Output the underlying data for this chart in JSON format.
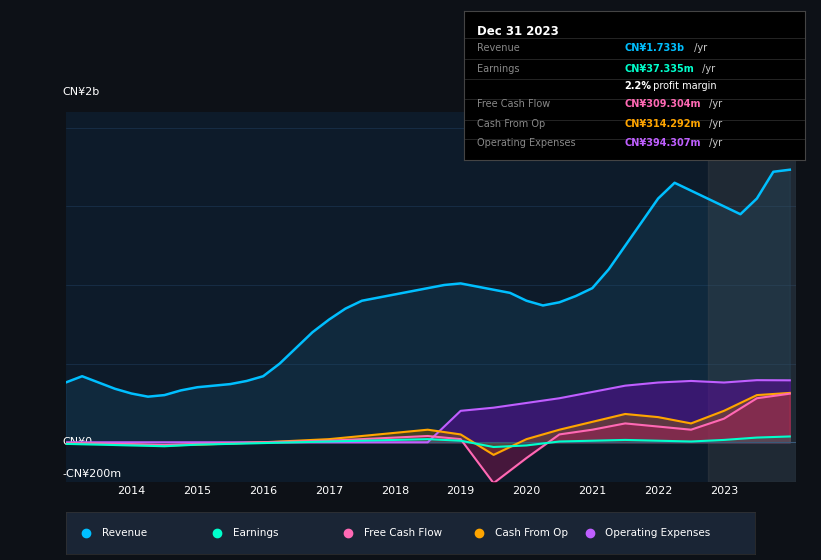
{
  "bg_color": "#0d1117",
  "chart_bg": "#0d1b2a",
  "ylabel_top": "CN¥2b",
  "ylabel_zero": "CN¥0",
  "ylabel_neg": "-CN¥200m",
  "info_box": {
    "title": "Dec 31 2023",
    "rows": [
      {
        "label": "Revenue",
        "value": "CN¥1.733b /yr",
        "color": "#00bfff"
      },
      {
        "label": "Earnings",
        "value": "CN¥37.335m /yr",
        "color": "#00ffcc"
      },
      {
        "label": "",
        "value": "2.2% profit margin",
        "color": "#ffffff"
      },
      {
        "label": "Free Cash Flow",
        "value": "CN¥309.304m /yr",
        "color": "#ff69b4"
      },
      {
        "label": "Cash From Op",
        "value": "CN¥314.292m /yr",
        "color": "#ffa500"
      },
      {
        "label": "Operating Expenses",
        "value": "CN¥394.307m /yr",
        "color": "#bf5fff"
      }
    ]
  },
  "legend": [
    {
      "label": "Revenue",
      "color": "#00bfff"
    },
    {
      "label": "Earnings",
      "color": "#00ffcc"
    },
    {
      "label": "Free Cash Flow",
      "color": "#ff69b4"
    },
    {
      "label": "Cash From Op",
      "color": "#ffa500"
    },
    {
      "label": "Operating Expenses",
      "color": "#bf5fff"
    }
  ],
  "revenue": {
    "x": [
      2013.0,
      2013.25,
      2013.5,
      2013.75,
      2014.0,
      2014.25,
      2014.5,
      2014.75,
      2015.0,
      2015.25,
      2015.5,
      2015.75,
      2016.0,
      2016.25,
      2016.5,
      2016.75,
      2017.0,
      2017.25,
      2017.5,
      2017.75,
      2018.0,
      2018.25,
      2018.5,
      2018.75,
      2019.0,
      2019.25,
      2019.5,
      2019.75,
      2020.0,
      2020.25,
      2020.5,
      2020.75,
      2021.0,
      2021.25,
      2021.5,
      2021.75,
      2022.0,
      2022.25,
      2022.5,
      2022.75,
      2023.0,
      2023.25,
      2023.5,
      2023.75,
      2024.0
    ],
    "y": [
      380,
      420,
      380,
      340,
      310,
      290,
      300,
      330,
      350,
      360,
      370,
      390,
      420,
      500,
      600,
      700,
      780,
      850,
      900,
      920,
      940,
      960,
      980,
      1000,
      1010,
      990,
      970,
      950,
      900,
      870,
      890,
      930,
      980,
      1100,
      1250,
      1400,
      1550,
      1650,
      1600,
      1550,
      1500,
      1450,
      1550,
      1720,
      1733
    ]
  },
  "earnings": {
    "x": [
      2013.0,
      2013.5,
      2014.0,
      2014.5,
      2015.0,
      2015.5,
      2016.0,
      2016.5,
      2017.0,
      2017.5,
      2018.0,
      2018.5,
      2019.0,
      2019.5,
      2020.0,
      2020.5,
      2021.0,
      2021.5,
      2022.0,
      2022.5,
      2023.0,
      2023.5,
      2024.0
    ],
    "y": [
      -10,
      -15,
      -20,
      -25,
      -15,
      -10,
      -5,
      0,
      5,
      10,
      15,
      20,
      10,
      -30,
      -20,
      5,
      10,
      15,
      10,
      5,
      15,
      30,
      37
    ]
  },
  "free_cash_flow": {
    "x": [
      2013.0,
      2013.5,
      2014.0,
      2014.5,
      2015.0,
      2015.5,
      2016.0,
      2016.5,
      2017.0,
      2017.5,
      2018.0,
      2018.5,
      2019.0,
      2019.5,
      2020.0,
      2020.5,
      2021.0,
      2021.5,
      2022.0,
      2022.5,
      2023.0,
      2023.5,
      2024.0
    ],
    "y": [
      -5,
      -8,
      -12,
      -18,
      -10,
      -5,
      0,
      5,
      10,
      20,
      30,
      40,
      20,
      -260,
      -100,
      50,
      80,
      120,
      100,
      80,
      150,
      280,
      309
    ]
  },
  "cash_from_op": {
    "x": [
      2013.0,
      2013.5,
      2014.0,
      2014.5,
      2015.0,
      2015.5,
      2016.0,
      2016.5,
      2017.0,
      2017.5,
      2018.0,
      2018.5,
      2019.0,
      2019.5,
      2020.0,
      2020.5,
      2021.0,
      2021.5,
      2022.0,
      2022.5,
      2023.0,
      2023.5,
      2024.0
    ],
    "y": [
      -8,
      -10,
      -15,
      -20,
      -15,
      -8,
      0,
      10,
      20,
      40,
      60,
      80,
      50,
      -80,
      20,
      80,
      130,
      180,
      160,
      120,
      200,
      300,
      314
    ]
  },
  "operating_expenses": {
    "x": [
      2013.0,
      2013.5,
      2014.0,
      2014.5,
      2015.0,
      2015.5,
      2016.0,
      2016.5,
      2017.0,
      2017.5,
      2018.0,
      2018.5,
      2019.0,
      2019.5,
      2020.0,
      2020.5,
      2021.0,
      2021.5,
      2022.0,
      2022.5,
      2023.0,
      2023.5,
      2024.0
    ],
    "y": [
      0,
      0,
      0,
      0,
      0,
      0,
      0,
      0,
      0,
      0,
      0,
      0,
      200,
      220,
      250,
      280,
      320,
      360,
      380,
      390,
      380,
      395,
      394
    ]
  },
  "shaded_region_start": 2022.75,
  "ylim": [
    -250,
    2100
  ],
  "xlim": [
    2013.0,
    2024.1
  ],
  "x_ticks": [
    2014,
    2015,
    2016,
    2017,
    2018,
    2019,
    2020,
    2021,
    2022,
    2023
  ],
  "x_tick_labels": [
    "2014",
    "2015",
    "2016",
    "2017",
    "2018",
    "2019",
    "2020",
    "2021",
    "2022",
    "2023"
  ]
}
